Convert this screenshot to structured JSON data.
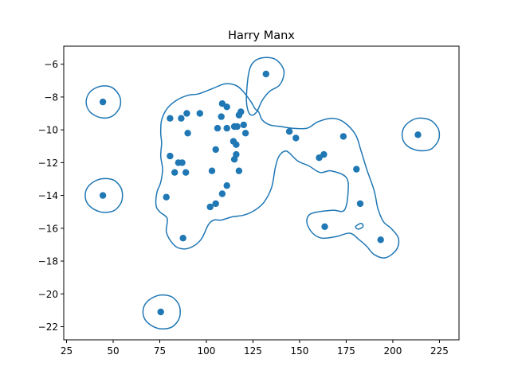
{
  "chart_data": {
    "type": "scatter",
    "title": "Harry Manx",
    "xlabel": "",
    "ylabel": "",
    "xlim": [
      23.5,
      235.5
    ],
    "ylim": [
      -22.8,
      -4.9
    ],
    "grid": false,
    "x_ticks": [
      25,
      50,
      75,
      100,
      125,
      150,
      175,
      200,
      225
    ],
    "y_ticks": [
      -22,
      -20,
      -18,
      -16,
      -14,
      -12,
      -10,
      -8,
      -6
    ],
    "colors": {
      "point": "#1f77b4",
      "contour": "#1f77b4",
      "axes": "#000000"
    },
    "points": [
      [
        44.5,
        -8.3
      ],
      [
        44.5,
        -14.0
      ],
      [
        75.5,
        -21.1
      ],
      [
        132,
        -6.6
      ],
      [
        213.5,
        -10.3
      ],
      [
        80.5,
        -9.3
      ],
      [
        86.5,
        -9.3
      ],
      [
        89.5,
        -9.0
      ],
      [
        96.5,
        -9.0
      ],
      [
        90,
        -10.2
      ],
      [
        80.5,
        -11.6
      ],
      [
        85,
        -12.0
      ],
      [
        87,
        -12.0
      ],
      [
        83,
        -12.6
      ],
      [
        89,
        -12.6
      ],
      [
        78.5,
        -14.1
      ],
      [
        87.5,
        -16.6
      ],
      [
        108.5,
        -8.4
      ],
      [
        111,
        -8.6
      ],
      [
        108,
        -9.2
      ],
      [
        106,
        -9.9
      ],
      [
        111,
        -9.9
      ],
      [
        115,
        -9.8
      ],
      [
        116.5,
        -9.8
      ],
      [
        118.5,
        -8.9
      ],
      [
        117.5,
        -9.1
      ],
      [
        120,
        -9.7
      ],
      [
        121,
        -10.2
      ],
      [
        114.5,
        -10.7
      ],
      [
        116,
        -10.9
      ],
      [
        105,
        -11.2
      ],
      [
        116,
        -11.5
      ],
      [
        115,
        -11.8
      ],
      [
        103,
        -12.5
      ],
      [
        117.5,
        -12.5
      ],
      [
        111,
        -13.4
      ],
      [
        108.5,
        -13.9
      ],
      [
        102,
        -14.7
      ],
      [
        105,
        -14.5
      ],
      [
        144.5,
        -10.1
      ],
      [
        148,
        -10.5
      ],
      [
        173.5,
        -10.4
      ],
      [
        160.5,
        -11.7
      ],
      [
        163,
        -11.5
      ],
      [
        180.5,
        -12.4
      ],
      [
        182.5,
        -14.5
      ],
      [
        163.5,
        -15.9
      ],
      [
        193.5,
        -16.7
      ]
    ],
    "contours": [
      [
        [
          43,
          -7.35
        ],
        [
          49,
          -7.4
        ],
        [
          53,
          -7.85
        ],
        [
          54,
          -8.3
        ],
        [
          53,
          -8.75
        ],
        [
          49,
          -9.2
        ],
        [
          43,
          -9.25
        ],
        [
          37.5,
          -8.9
        ],
        [
          35.5,
          -8.3
        ],
        [
          37.5,
          -7.7
        ]
      ],
      [
        [
          43,
          -13.0
        ],
        [
          50,
          -13.05
        ],
        [
          54,
          -13.5
        ],
        [
          55,
          -14.0
        ],
        [
          54,
          -14.5
        ],
        [
          50,
          -14.95
        ],
        [
          43,
          -15.0
        ],
        [
          37,
          -14.6
        ],
        [
          35,
          -14.0
        ],
        [
          37,
          -13.4
        ]
      ],
      [
        [
          74,
          -20.1
        ],
        [
          81,
          -20.15
        ],
        [
          85,
          -20.6
        ],
        [
          86,
          -21.1
        ],
        [
          85,
          -21.6
        ],
        [
          81,
          -22.05
        ],
        [
          74,
          -22.1
        ],
        [
          68,
          -21.7
        ],
        [
          66,
          -21.1
        ],
        [
          68,
          -20.5
        ]
      ],
      [
        [
          131,
          -5.6
        ],
        [
          137,
          -5.7
        ],
        [
          141,
          -6.2
        ],
        [
          141.5,
          -6.7
        ],
        [
          139,
          -7.3
        ],
        [
          134,
          -7.65
        ],
        [
          130,
          -8.2
        ],
        [
          127,
          -8.9
        ],
        [
          124,
          -9.1
        ],
        [
          122,
          -8.7
        ],
        [
          121.5,
          -7.9
        ],
        [
          123,
          -6.4
        ],
        [
          126,
          -5.8
        ]
      ],
      [
        [
          213,
          -9.3
        ],
        [
          220,
          -9.4
        ],
        [
          224,
          -9.85
        ],
        [
          225,
          -10.3
        ],
        [
          224,
          -10.75
        ],
        [
          220,
          -11.2
        ],
        [
          213,
          -11.25
        ],
        [
          207,
          -10.9
        ],
        [
          205,
          -10.3
        ],
        [
          207,
          -9.7
        ]
      ],
      [
        [
          84,
          -8.2
        ],
        [
          90,
          -7.9
        ],
        [
          96,
          -7.8
        ],
        [
          103,
          -7.5
        ],
        [
          110,
          -7.2
        ],
        [
          116,
          -7.3
        ],
        [
          120,
          -7.7
        ],
        [
          124,
          -8.3
        ],
        [
          126,
          -8.7
        ],
        [
          128,
          -8.9
        ],
        [
          130,
          -9.4
        ],
        [
          134,
          -9.7
        ],
        [
          140,
          -9.8
        ],
        [
          146,
          -9.9
        ],
        [
          154,
          -9.9
        ],
        [
          160,
          -9.5
        ],
        [
          168,
          -9.3
        ],
        [
          174,
          -9.55
        ],
        [
          180,
          -10.3
        ],
        [
          183,
          -11.3
        ],
        [
          186,
          -12.4
        ],
        [
          190,
          -13.7
        ],
        [
          192,
          -14.8
        ],
        [
          195,
          -15.6
        ],
        [
          199,
          -16.0
        ],
        [
          203,
          -16.6
        ],
        [
          202,
          -17.3
        ],
        [
          196,
          -17.8
        ],
        [
          190,
          -17.6
        ],
        [
          186,
          -17.1
        ],
        [
          182,
          -16.7
        ],
        [
          177,
          -16.3
        ],
        [
          170,
          -16.5
        ],
        [
          162,
          -16.6
        ],
        [
          157,
          -16.3
        ],
        [
          154,
          -15.7
        ],
        [
          155,
          -15.2
        ],
        [
          160,
          -15.0
        ],
        [
          168,
          -14.9
        ],
        [
          174,
          -14.9
        ],
        [
          176,
          -13.8
        ],
        [
          175,
          -12.9
        ],
        [
          167,
          -12.5
        ],
        [
          161,
          -12.6
        ],
        [
          155,
          -12.2
        ],
        [
          149,
          -11.9
        ],
        [
          143,
          -11.3
        ],
        [
          139,
          -11.6
        ],
        [
          137,
          -12.3
        ],
        [
          135,
          -13.5
        ],
        [
          131,
          -14.4
        ],
        [
          126,
          -14.9
        ],
        [
          120,
          -15.2
        ],
        [
          114,
          -15.3
        ],
        [
          108,
          -15.5
        ],
        [
          104,
          -15.5
        ],
        [
          101,
          -15.8
        ],
        [
          97,
          -16.7
        ],
        [
          91,
          -17.2
        ],
        [
          85,
          -17.2
        ],
        [
          81,
          -16.8
        ],
        [
          78.5,
          -16.2
        ],
        [
          79,
          -15.4
        ],
        [
          75,
          -15.0
        ],
        [
          73,
          -14.6
        ],
        [
          73.5,
          -13.8
        ],
        [
          75.5,
          -13.2
        ],
        [
          76.5,
          -12.4
        ],
        [
          75.5,
          -11.6
        ],
        [
          76,
          -10.8
        ],
        [
          75.5,
          -10.2
        ],
        [
          76,
          -9.4
        ],
        [
          79,
          -8.7
        ]
      ],
      [
        [
          180,
          -15.9
        ],
        [
          183,
          -15.7
        ],
        [
          184,
          -15.9
        ],
        [
          181.5,
          -16.05
        ]
      ]
    ]
  }
}
